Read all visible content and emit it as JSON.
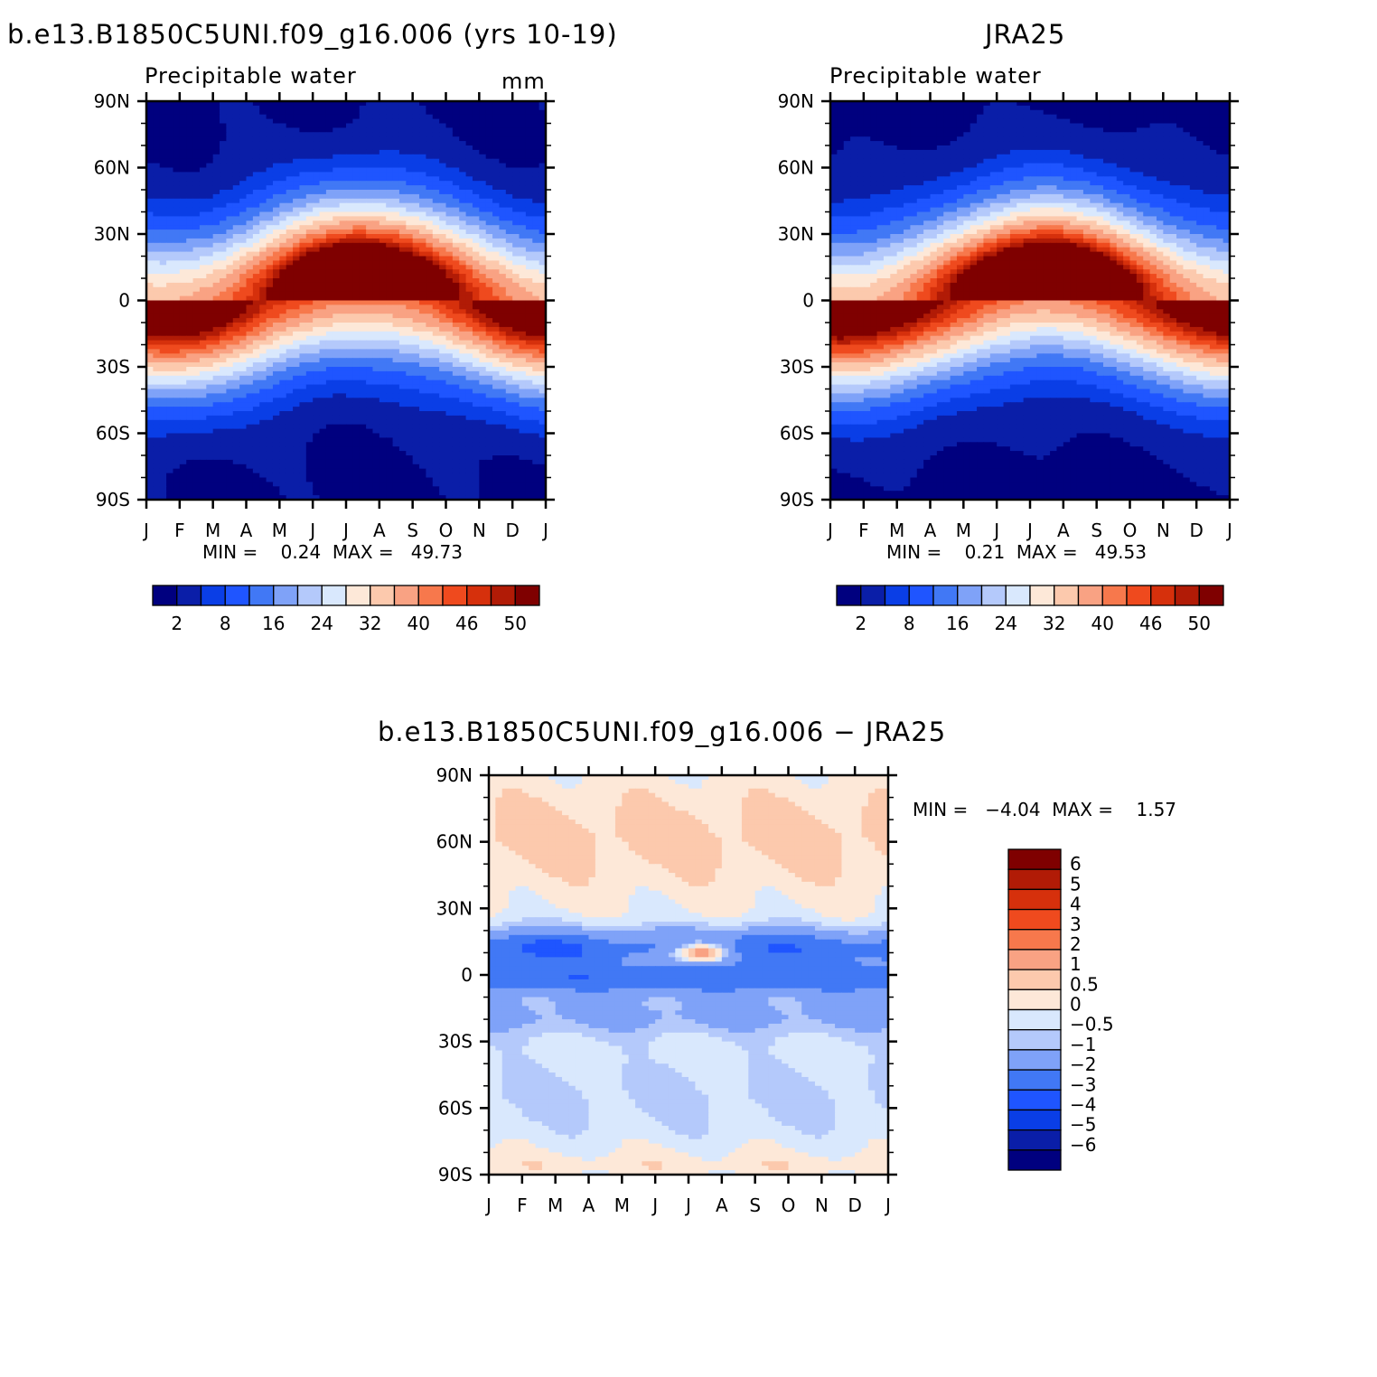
{
  "chart_data": [
    {
      "type": "heatmap",
      "title": "b.e13.B1850C5UNI.f09_g16.006 (yrs 10-19)",
      "subtitle": "Precipitable water",
      "units": "mm",
      "x_ticks": [
        "J",
        "F",
        "M",
        "A",
        "M",
        "J",
        "J",
        "A",
        "S",
        "O",
        "N",
        "D",
        "J"
      ],
      "y_ticks": [
        "90N",
        "60N",
        "30N",
        "0",
        "30S",
        "60S",
        "90S"
      ],
      "y_range": [
        -90,
        90
      ],
      "min_max_label": "MIN =    0.24  MAX =   49.73",
      "min": 0.24,
      "max": 49.73,
      "colorbar_labels": [
        "2",
        "8",
        "16",
        "24",
        "32",
        "40",
        "46",
        "50"
      ]
    },
    {
      "type": "heatmap",
      "title": "JRA25",
      "subtitle": "Precipitable water",
      "x_ticks": [
        "J",
        "F",
        "M",
        "A",
        "M",
        "J",
        "J",
        "A",
        "S",
        "O",
        "N",
        "D",
        "J"
      ],
      "y_ticks": [
        "90N",
        "60N",
        "30N",
        "0",
        "30S",
        "60S",
        "90S"
      ],
      "y_range": [
        -90,
        90
      ],
      "min_max_label": "MIN =    0.21  MAX =   49.53",
      "min": 0.21,
      "max": 49.53,
      "colorbar_labels": [
        "2",
        "8",
        "16",
        "24",
        "32",
        "40",
        "46",
        "50"
      ]
    },
    {
      "type": "heatmap",
      "title": "b.e13.B1850C5UNI.f09_g16.006 − JRA25",
      "x_ticks": [
        "J",
        "F",
        "M",
        "A",
        "M",
        "J",
        "J",
        "A",
        "S",
        "O",
        "N",
        "D",
        "J"
      ],
      "y_ticks": [
        "90N",
        "60N",
        "30N",
        "0",
        "30S",
        "60S",
        "90S"
      ],
      "y_range": [
        -90,
        90
      ],
      "min_max_label": "MIN =   −4.04  MAX =    1.57",
      "min": -4.04,
      "max": 1.57,
      "colorbar_labels": [
        "6",
        "5",
        "4",
        "3",
        "2",
        "1",
        "0.5",
        "0",
        "−0.5",
        "−1",
        "−2",
        "−3",
        "−4",
        "−5",
        "−6"
      ]
    }
  ],
  "palettes": {
    "absolute": [
      "#00007f",
      "#0a1ea8",
      "#0a3ee6",
      "#1f55ff",
      "#4178f5",
      "#7fa2f8",
      "#b4c9fb",
      "#d9e8fd",
      "#fde8d8",
      "#fcc9ad",
      "#f9a283",
      "#f7784c",
      "#ef4a1e",
      "#d6300c",
      "#b11b06",
      "#7f0000"
    ],
    "difference": [
      "#00007f",
      "#0a1ea8",
      "#0a3ee6",
      "#1f55ff",
      "#4178f5",
      "#7fa2f8",
      "#b4c9fb",
      "#d9e8fd",
      "#fde8d8",
      "#fcc9ad",
      "#f9a283",
      "#f7784c",
      "#ef4a1e",
      "#d6300c",
      "#b11b06",
      "#7f0000"
    ]
  }
}
